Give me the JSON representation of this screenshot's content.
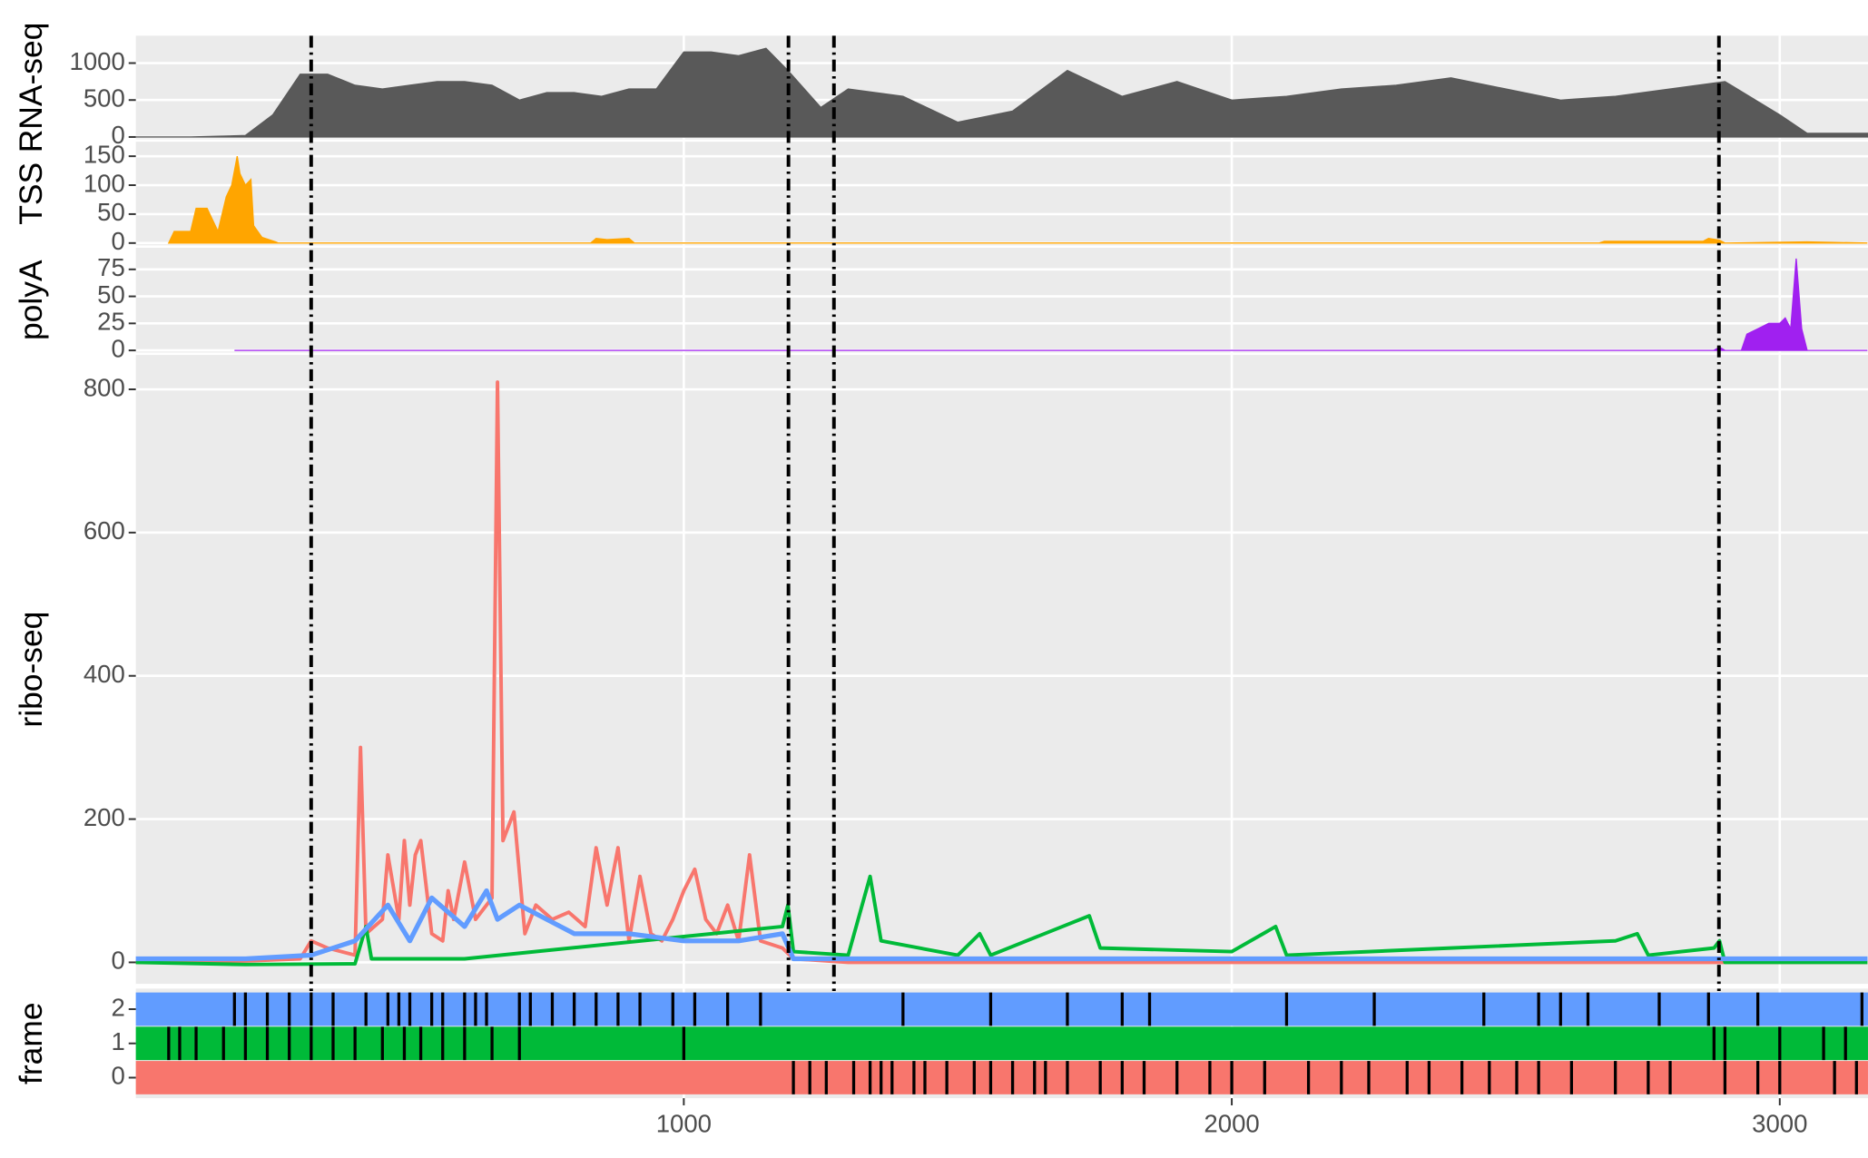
{
  "chart_data": [
    {
      "type": "area",
      "ylabel": "RNA-seq",
      "color": "#595959",
      "x": [
        0,
        100,
        200,
        250,
        300,
        350,
        400,
        450,
        500,
        550,
        600,
        650,
        700,
        750,
        800,
        850,
        900,
        950,
        1000,
        1050,
        1100,
        1150,
        1190,
        1250,
        1300,
        1400,
        1500,
        1600,
        1700,
        1800,
        1900,
        2000,
        2100,
        2200,
        2300,
        2400,
        2500,
        2600,
        2700,
        2800,
        2900,
        3000,
        3050,
        3160
      ],
      "values": [
        0,
        0,
        20,
        300,
        850,
        850,
        700,
        650,
        700,
        750,
        750,
        700,
        500,
        600,
        600,
        550,
        650,
        650,
        1150,
        1150,
        1100,
        1200,
        900,
        400,
        650,
        550,
        200,
        350,
        900,
        550,
        750,
        500,
        550,
        650,
        700,
        800,
        650,
        500,
        550,
        650,
        750,
        300,
        50,
        50
      ],
      "ylim": [
        -32,
        1370
      ],
      "yticks": [
        0,
        500,
        1000
      ]
    },
    {
      "type": "area",
      "ylabel": "TSS",
      "color": "#FFA500",
      "x": [
        60,
        70,
        100,
        110,
        130,
        150,
        165,
        175,
        185,
        190,
        200,
        210,
        215,
        230,
        255,
        260,
        830,
        840,
        860,
        900,
        910,
        2670,
        2680,
        2860,
        2870,
        2890,
        2900,
        3050,
        3160
      ],
      "values": [
        0,
        20,
        20,
        60,
        60,
        20,
        80,
        100,
        150,
        120,
        100,
        110,
        30,
        10,
        2,
        0,
        0,
        8,
        6,
        8,
        0,
        0,
        3,
        3,
        8,
        5,
        0,
        2,
        0
      ],
      "ylim": [
        -4,
        175
      ],
      "yticks": [
        0,
        50,
        100,
        150
      ]
    },
    {
      "type": "area",
      "ylabel": "polyA",
      "color": "#A020F0",
      "x": [
        180,
        2880,
        2890,
        2900,
        2930,
        2940,
        2960,
        2980,
        3000,
        3010,
        3020,
        3030,
        3040,
        3050,
        3160
      ],
      "values": [
        0,
        0,
        3,
        0,
        0,
        15,
        20,
        25,
        25,
        30,
        20,
        85,
        20,
        0,
        0
      ],
      "ylim": [
        -2,
        95
      ],
      "yticks": [
        0,
        25,
        50,
        75
      ]
    },
    {
      "type": "line",
      "ylabel": "ribo-seq",
      "series": [
        {
          "color": "#F8766D",
          "x": [
            0,
            200,
            300,
            320,
            350,
            400,
            410,
            420,
            450,
            460,
            480,
            490,
            500,
            510,
            520,
            540,
            560,
            570,
            580,
            600,
            620,
            650,
            660,
            670,
            690,
            710,
            730,
            760,
            790,
            820,
            840,
            860,
            880,
            900,
            920,
            940,
            960,
            980,
            1000,
            1020,
            1040,
            1060,
            1080,
            1100,
            1120,
            1140,
            1180,
            1200,
            1300,
            3160
          ],
          "values": [
            0,
            2,
            5,
            30,
            20,
            10,
            300,
            40,
            60,
            150,
            60,
            170,
            80,
            150,
            170,
            40,
            30,
            100,
            60,
            140,
            60,
            90,
            810,
            170,
            210,
            40,
            80,
            60,
            70,
            50,
            160,
            80,
            160,
            30,
            120,
            40,
            30,
            60,
            100,
            130,
            60,
            40,
            80,
            30,
            150,
            30,
            20,
            5,
            0,
            0
          ]
        },
        {
          "color": "#00BA38",
          "x": [
            0,
            200,
            400,
            420,
            430,
            600,
            1180,
            1190,
            1200,
            1300,
            1340,
            1360,
            1500,
            1540,
            1560,
            1740,
            1760,
            2000,
            2080,
            2100,
            2400,
            2700,
            2740,
            2760,
            2880,
            2890,
            2900,
            3160
          ],
          "values": [
            0,
            -3,
            -2,
            50,
            5,
            5,
            50,
            80,
            15,
            10,
            120,
            30,
            10,
            40,
            10,
            65,
            20,
            15,
            50,
            10,
            20,
            30,
            40,
            10,
            20,
            30,
            0,
            0
          ]
        },
        {
          "color": "#619CFF",
          "x": [
            0,
            200,
            320,
            400,
            460,
            500,
            540,
            600,
            640,
            660,
            700,
            800,
            900,
            1000,
            1100,
            1180,
            1200,
            3160
          ],
          "values": [
            5,
            5,
            10,
            30,
            80,
            30,
            90,
            50,
            100,
            60,
            80,
            40,
            40,
            30,
            30,
            40,
            5,
            5
          ]
        }
      ],
      "ylim": [
        -30,
        848
      ],
      "yticks": [
        0,
        200,
        400,
        600,
        800
      ]
    },
    {
      "type": "tile",
      "ylabel": "frame",
      "categories": [
        "0",
        "1",
        "2"
      ],
      "series": [
        {
          "color": "#F8766D",
          "stops": [
            1200,
            1230,
            1260,
            1310,
            1340,
            1360,
            1380,
            1420,
            1440,
            1480,
            1530,
            1560,
            1600,
            1640,
            1660,
            1700,
            1760,
            1800,
            1840,
            1900,
            1960,
            2000,
            2060,
            2140,
            2200,
            2250,
            2320,
            2360,
            2420,
            2470,
            2520,
            2560,
            2620,
            2700,
            2760,
            2800,
            2900,
            2960,
            3000,
            3100,
            3140
          ]
        },
        {
          "color": "#00BA38",
          "stops": [
            60,
            80,
            110,
            160,
            200,
            240,
            280,
            320,
            360,
            400,
            450,
            490,
            520,
            560,
            600,
            650,
            700,
            1000,
            2880,
            2900,
            3000,
            3080,
            3120
          ]
        },
        {
          "color": "#619CFF",
          "stops": [
            180,
            200,
            240,
            280,
            320,
            360,
            420,
            460,
            480,
            500,
            540,
            560,
            600,
            620,
            640,
            700,
            720,
            760,
            800,
            840,
            880,
            920,
            980,
            1020,
            1080,
            1140,
            1400,
            1560,
            1700,
            1800,
            1850,
            2100,
            2260,
            2460,
            2560,
            2600,
            2650,
            2780,
            2870,
            2960,
            3150
          ]
        }
      ],
      "ylim": [
        -0.6,
        2.6
      ],
      "xlim": [
        0,
        3161
      ],
      "xticks": [
        1000,
        2000,
        3000
      ],
      "vlines": [
        320,
        1191,
        1274,
        2889
      ]
    }
  ]
}
